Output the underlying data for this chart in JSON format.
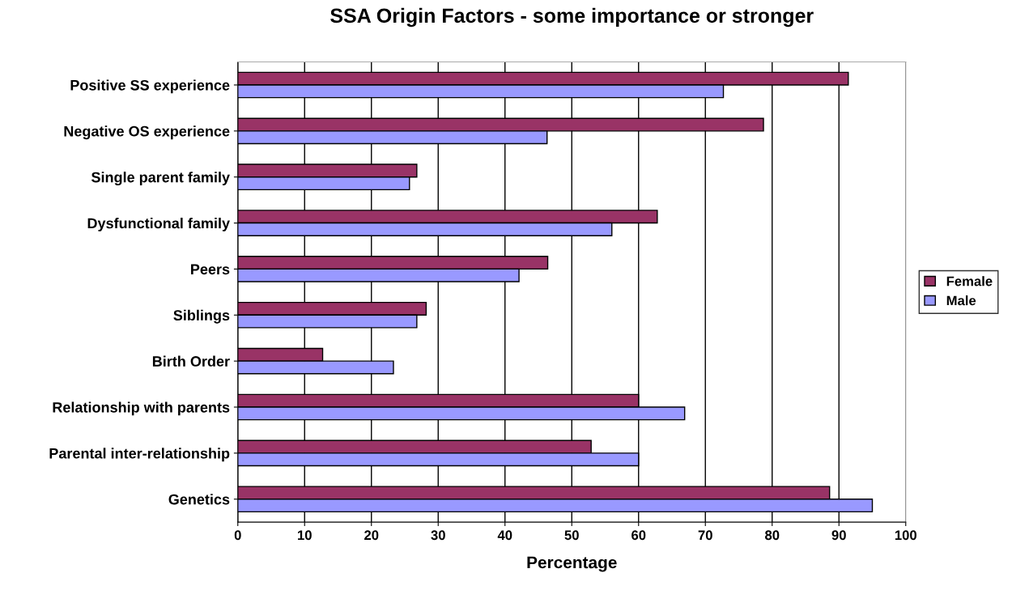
{
  "chart_data": {
    "type": "bar",
    "orientation": "horizontal",
    "title": "SSA Origin Factors - some importance or stronger",
    "xlabel": "Percentage",
    "categories": [
      "Positive SS experience",
      "Negative OS experience",
      "Single parent family",
      "Dysfunctional family",
      "Peers",
      "Siblings",
      "Birth Order",
      "Relationship with parents",
      "Parental inter-relationship",
      "Genetics"
    ],
    "series": [
      {
        "name": "Female",
        "color": "#993366",
        "values": [
          91.4,
          78.7,
          26.8,
          62.8,
          46.4,
          28.2,
          12.7,
          60,
          52.9,
          88.6
        ]
      },
      {
        "name": "Male",
        "color": "#9999ff",
        "values": [
          72.7,
          46.3,
          25.7,
          56,
          42.1,
          26.8,
          23.3,
          66.9,
          60,
          95
        ]
      }
    ],
    "xlim": [
      0,
      100
    ],
    "xticks": [
      0,
      10,
      20,
      30,
      40,
      50,
      60,
      70,
      80,
      90,
      100
    ],
    "grid": "x",
    "legend": "right"
  }
}
